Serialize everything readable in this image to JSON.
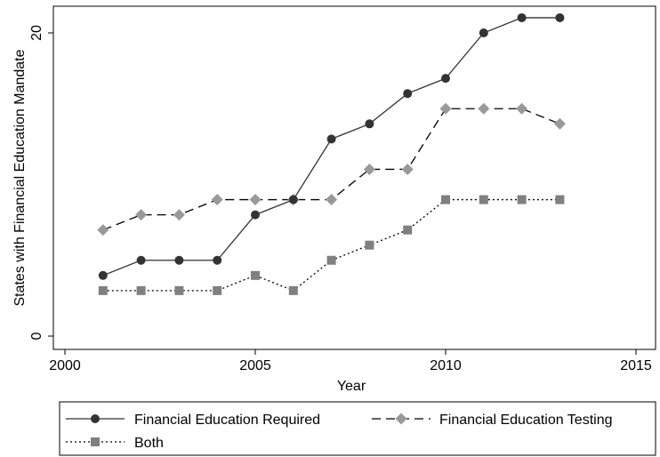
{
  "chart_data": {
    "type": "line",
    "title": "",
    "xlabel": "Year",
    "ylabel": "States with Financial Education Mandate",
    "xlim": [
      2000,
      2015
    ],
    "ylim": [
      0,
      21
    ],
    "xticks": [
      2000,
      2005,
      2010,
      2015
    ],
    "yticks": [
      0,
      20
    ],
    "grid": false,
    "legend_position": "bottom",
    "series": [
      {
        "name": "Financial Education Required",
        "line_style": "solid",
        "marker": "circle",
        "color": "#333333",
        "x": [
          2001,
          2002,
          2003,
          2004,
          2005,
          2006,
          2007,
          2008,
          2009,
          2010,
          2011,
          2012,
          2013
        ],
        "y": [
          4,
          5,
          5,
          5,
          8,
          9,
          13,
          14,
          16,
          17,
          20,
          21,
          21
        ]
      },
      {
        "name": "Financial Education Testing",
        "line_style": "dashed",
        "marker": "diamond",
        "color": "#999999",
        "x": [
          2001,
          2002,
          2003,
          2004,
          2005,
          2006,
          2007,
          2008,
          2009,
          2010,
          2011,
          2012,
          2013
        ],
        "y": [
          7,
          8,
          8,
          9,
          9,
          9,
          9,
          11,
          11,
          15,
          15,
          15,
          14
        ]
      },
      {
        "name": "Both",
        "line_style": "dotted",
        "marker": "square",
        "color": "#808080",
        "x": [
          2001,
          2002,
          2003,
          2004,
          2005,
          2006,
          2007,
          2008,
          2009,
          2010,
          2011,
          2012,
          2013
        ],
        "y": [
          3,
          3,
          3,
          3,
          4,
          3,
          5,
          6,
          7,
          9,
          9,
          9,
          9
        ]
      }
    ]
  }
}
